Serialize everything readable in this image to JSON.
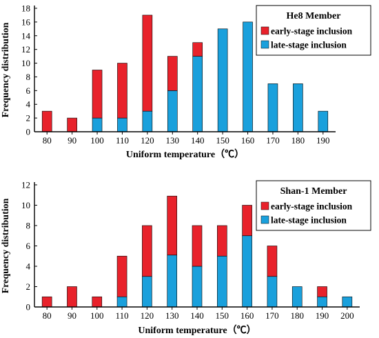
{
  "colors": {
    "early": "#e8222b",
    "late": "#1aa0dc",
    "axis": "#000000"
  },
  "chart_data": [
    {
      "type": "bar",
      "stacked": true,
      "title": "He8 Member",
      "xlabel": "Uniform temperature（℃）",
      "ylabel": "Frequency distribution",
      "ylim": [
        0,
        18
      ],
      "yticks": [
        0,
        2,
        4,
        6,
        8,
        10,
        12,
        14,
        16,
        18
      ],
      "categories": [
        "80",
        "90",
        "100",
        "110",
        "120",
        "130",
        "140",
        "150",
        "160",
        "170",
        "180",
        "190"
      ],
      "legend_position": "top-right",
      "series": [
        {
          "name": "early-stage inclusion",
          "color": "#e8222b",
          "values": [
            3,
            2,
            7,
            8,
            14,
            5,
            2,
            0,
            0,
            0,
            0,
            0
          ]
        },
        {
          "name": "late-stage inclusion",
          "color": "#1aa0dc",
          "values": [
            0,
            0,
            2,
            2,
            3,
            6,
            11,
            15,
            16,
            7,
            7,
            3
          ]
        }
      ]
    },
    {
      "type": "bar",
      "stacked": true,
      "title": "Shan-1 Member",
      "xlabel": "Uniform temperature（℃）",
      "ylabel": "Frequency distribution",
      "ylim": [
        0,
        12
      ],
      "yticks": [
        0,
        2,
        4,
        6,
        8,
        10,
        12
      ],
      "categories": [
        "80",
        "90",
        "100",
        "110",
        "120",
        "130",
        "140",
        "150",
        "160",
        "170",
        "180",
        "190",
        "200"
      ],
      "legend_position": "top-right",
      "series": [
        {
          "name": "early-stage inclusion",
          "color": "#e8222b",
          "values": [
            1,
            2,
            1,
            4,
            5,
            5.8,
            4,
            3,
            3,
            3,
            0,
            1,
            0
          ]
        },
        {
          "name": "late-stage inclusion",
          "color": "#1aa0dc",
          "values": [
            0,
            0,
            0,
            1,
            3,
            5.1,
            4,
            5,
            7,
            3,
            2,
            1,
            1
          ]
        }
      ]
    }
  ]
}
